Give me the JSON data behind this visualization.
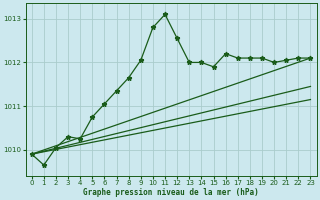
{
  "title": "Graphe pression niveau de la mer (hPa)",
  "background_color": "#cce8ee",
  "grid_color": "#aacccc",
  "line_color": "#1a5c1a",
  "xlim": [
    -0.5,
    23.5
  ],
  "ylim": [
    1009.4,
    1013.35
  ],
  "yticks": [
    1010,
    1011,
    1012,
    1013
  ],
  "xticks": [
    0,
    1,
    2,
    3,
    4,
    5,
    6,
    7,
    8,
    9,
    10,
    11,
    12,
    13,
    14,
    15,
    16,
    17,
    18,
    19,
    20,
    21,
    22,
    23
  ],
  "series1_x": [
    0,
    1,
    2,
    3,
    4,
    5,
    6,
    7,
    8,
    9,
    10,
    11,
    12,
    13,
    14,
    15,
    16,
    17,
    18,
    19,
    20,
    21,
    22,
    23
  ],
  "series1_y": [
    1009.9,
    1009.65,
    1010.05,
    1010.3,
    1010.25,
    1010.75,
    1011.05,
    1011.35,
    1011.65,
    1012.05,
    1012.8,
    1013.1,
    1012.55,
    1012.0,
    1012.0,
    1011.9,
    1012.2,
    1012.1,
    1012.1,
    1012.1,
    1012.0,
    1012.05,
    1012.1,
    1012.1
  ],
  "series2_x": [
    0,
    23
  ],
  "series2_y": [
    1009.9,
    1011.15
  ],
  "series3_x": [
    0,
    23
  ],
  "series3_y": [
    1009.9,
    1011.45
  ],
  "series4_x": [
    0,
    23
  ],
  "series4_y": [
    1009.9,
    1012.1
  ]
}
